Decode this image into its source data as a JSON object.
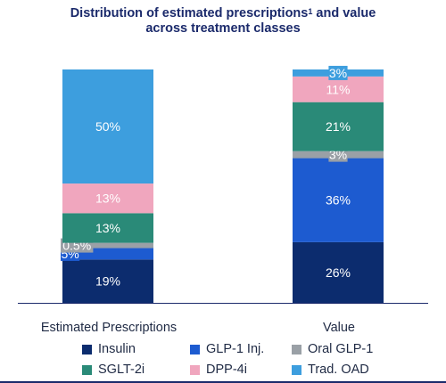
{
  "chart_data": {
    "type": "bar",
    "stacked": true,
    "title_line1": "Distribution of estimated prescriptions",
    "title_footnote": "1",
    "title_line1_suffix": " and value",
    "title_line2": "across treatment classes",
    "categories": [
      "Estimated Prescriptions",
      "Value"
    ],
    "ylim": [
      0,
      100
    ],
    "grid": false,
    "legend_position": "bottom",
    "series": [
      {
        "name": "Insulin",
        "color": "#0c2c6e",
        "values": [
          19,
          26
        ],
        "labels": [
          "19%",
          "26%"
        ]
      },
      {
        "name": "GLP-1 Inj.",
        "color": "#1d5bd0",
        "values": [
          5,
          36
        ],
        "labels": [
          "5%",
          "36%"
        ]
      },
      {
        "name": "Oral GLP-1",
        "color": "#9aa0a6",
        "values": [
          0.5,
          3
        ],
        "labels": [
          "0.5%",
          "3%"
        ]
      },
      {
        "name": "SGLT-2i",
        "color": "#2a8a78",
        "values": [
          13,
          21
        ],
        "labels": [
          "13%",
          "21%"
        ]
      },
      {
        "name": "DPP-4i",
        "color": "#f0a6be",
        "values": [
          13,
          11
        ],
        "labels": [
          "13%",
          "11%"
        ]
      },
      {
        "name": "Trad. OAD",
        "color": "#3d9ede",
        "values": [
          50,
          3
        ],
        "labels": [
          "50%",
          "3%"
        ]
      }
    ]
  }
}
